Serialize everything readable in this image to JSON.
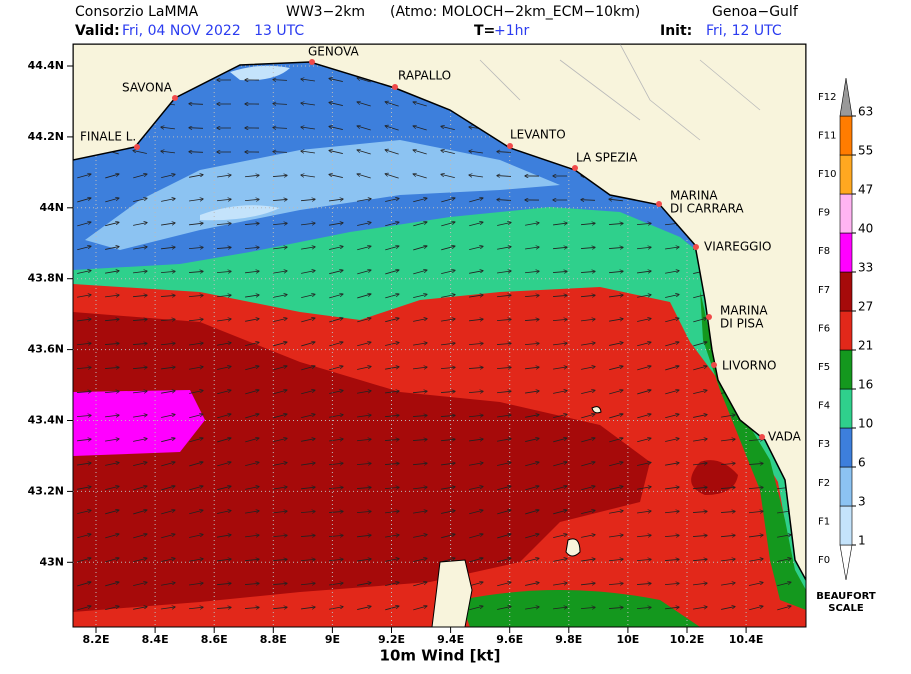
{
  "header": {
    "agency": "Consorzio LaMMA",
    "model": "WW3−2km",
    "atmo": "(Atmo: MOLOCH−2km_ECM−10km)",
    "area": "Genoa−Gulf",
    "valid_label": "Valid:",
    "valid": "Fri, 04 NOV 2022   13 UTC",
    "step_label": "T=",
    "step": "+1hr",
    "init_label": "Init:",
    "init": "Fri, 12 UTC"
  },
  "map": {
    "lat_ticks": [
      "44.4N",
      "44.2N",
      "44N",
      "43.8N",
      "43.6N",
      "43.4N",
      "43.2N",
      "43N"
    ],
    "lon_ticks": [
      "8.2E",
      "8.4E",
      "8.6E",
      "8.8E",
      "9E",
      "9.2E",
      "9.4E",
      "9.6E",
      "9.8E",
      "10E",
      "10.2E",
      "10.4E"
    ],
    "cities": [
      [
        "GENOVA"
      ],
      [
        "RAPALLO"
      ],
      [
        "SAVONA"
      ],
      [
        "FINALE L."
      ],
      [
        "LEVANTO"
      ],
      [
        "LA SPEZIA"
      ],
      [
        "MARINA",
        "DI CARRARA"
      ],
      [
        "VIAREGGIO"
      ],
      [
        "MARINA",
        "DI PISA"
      ],
      [
        "LIVORNO"
      ],
      [
        "VADA"
      ]
    ],
    "x_title": "10m Wind [kt]"
  },
  "legend": {
    "levels": [
      1,
      3,
      6,
      10,
      16,
      21,
      27,
      33,
      40,
      47,
      55,
      63
    ],
    "beaufort": [
      "F0",
      "F1",
      "F2",
      "F3",
      "F4",
      "F5",
      "F6",
      "F7",
      "F8",
      "F9",
      "F10",
      "F11",
      "F12"
    ],
    "colors": [
      "#ffffff",
      "#c4e3fb",
      "#8cc3f2",
      "#3d7fdc",
      "#2fd08c",
      "#14981e",
      "#e2281a",
      "#a60a0a",
      "#ff00ff",
      "#ffb4f2",
      "#ffa820",
      "#ff7c00",
      "#999999"
    ],
    "title": [
      "BEAUFORT",
      "SCALE"
    ]
  }
}
